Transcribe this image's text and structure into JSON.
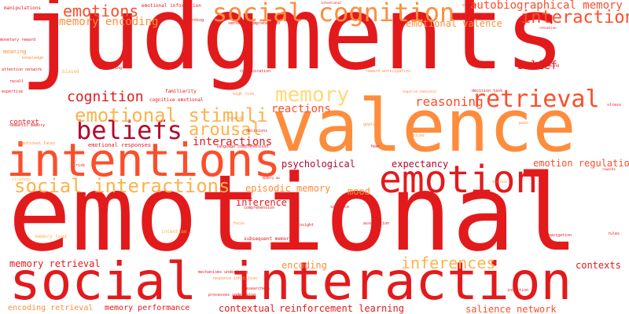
{
  "palette": {
    "dark_red": "#b3092b",
    "red": "#e31a1c",
    "orange_red": "#fc4e2a",
    "orange": "#fd8d3c",
    "light_orange": "#feb24c",
    "pale_orange": "#fed976"
  },
  "words": [
    {
      "text": "judgments",
      "color": "#e31a1c"
    },
    {
      "text": "emotional",
      "color": "#e31a1c"
    },
    {
      "text": "valence",
      "color": "#fd8d3c"
    },
    {
      "text": "social interaction",
      "color": "#e31a1c"
    },
    {
      "text": "intentions",
      "color": "#fc4e2a"
    },
    {
      "text": "emotion",
      "color": "#e31a1c"
    },
    {
      "text": "beliefs",
      "color": "#b3092b"
    },
    {
      "text": "social cognition",
      "color": "#fd8d3c"
    },
    {
      "text": "retrieval",
      "color": "#fc4e2a"
    },
    {
      "text": "social interactions",
      "color": "#feb24c"
    },
    {
      "text": "emotional stimuli",
      "color": "#feb24c"
    },
    {
      "text": "interaction",
      "color": "#fc4e2a"
    },
    {
      "text": "emotions",
      "color": "#fc4e2a"
    },
    {
      "text": "memory",
      "color": "#fed976"
    },
    {
      "text": "arousal",
      "color": "#feb24c"
    },
    {
      "text": "cognition",
      "color": "#e31a1c"
    },
    {
      "text": "inferences",
      "color": "#feb24c"
    },
    {
      "text": "reasoning",
      "color": "#fc4e2a"
    },
    {
      "text": "autobiographical memory",
      "color": "#fc4e2a"
    },
    {
      "text": "memory encoding",
      "color": "#fd8d3c"
    },
    {
      "text": "emotional valence",
      "color": "#fd8d3c"
    },
    {
      "text": "reactions",
      "color": "#fc4e2a"
    },
    {
      "text": "interactions",
      "color": "#e31a1c"
    },
    {
      "text": "belief",
      "color": "#e31a1c"
    },
    {
      "text": "episodic memory",
      "color": "#fd8d3c"
    },
    {
      "text": "psychological",
      "color": "#b3092b"
    },
    {
      "text": "expectancy",
      "color": "#b3092b"
    },
    {
      "text": "emotion regulation",
      "color": "#fc4e2a"
    },
    {
      "text": "mood",
      "color": "#fd8d3c"
    },
    {
      "text": "inference",
      "color": "#e31a1c"
    },
    {
      "text": "memory retrieval",
      "color": "#e31a1c"
    },
    {
      "text": "encoding",
      "color": "#fd8d3c"
    },
    {
      "text": "contexts",
      "color": "#e31a1c"
    },
    {
      "text": "contextual",
      "color": "#e31a1c"
    },
    {
      "text": "reinforcement learning",
      "color": "#e31a1c"
    },
    {
      "text": "salience network",
      "color": "#fc4e2a"
    },
    {
      "text": "encoding retrieval",
      "color": "#fd8d3c"
    },
    {
      "text": "memory performance",
      "color": "#e31a1c"
    },
    {
      "text": "context",
      "color": "#e31a1c"
    },
    {
      "text": "emotional responses",
      "color": "#e31a1c"
    },
    {
      "text": "familiarity",
      "color": "#e31a1c"
    },
    {
      "text": "cognitive emotional",
      "color": "#e31a1c"
    },
    {
      "text": "emotional information",
      "color": "#e31a1c"
    },
    {
      "text": "manipulations",
      "color": "#e31a1c"
    },
    {
      "text": "monetary reward",
      "color": "#e31a1c"
    },
    {
      "text": "knowledge",
      "color": "#fd8d3c"
    },
    {
      "text": "meaning",
      "color": "#fd8d3c"
    },
    {
      "text": "attention network",
      "color": "#e31a1c"
    },
    {
      "text": "recall",
      "color": "#e31a1c"
    },
    {
      "text": "expertise",
      "color": "#e31a1c"
    },
    {
      "text": "semantic memory",
      "color": "#e31a1c"
    },
    {
      "text": "emotional faces",
      "color": "#fd8d3c"
    },
    {
      "text": "strategy",
      "color": "#feb24c"
    },
    {
      "text": "risk",
      "color": "#e31a1c"
    },
    {
      "text": "intention",
      "color": "#feb24c"
    },
    {
      "text": "memory load",
      "color": "#feb24c"
    },
    {
      "text": "subsequent memory",
      "color": "#e31a1c"
    },
    {
      "text": "mechanisms underlying",
      "color": "#e31a1c"
    },
    {
      "text": "processes underlying",
      "color": "#e31a1c"
    },
    {
      "text": "response inhibition",
      "color": "#fd8d3c"
    },
    {
      "text": "sentence comprehension",
      "color": "#e31a1c"
    },
    {
      "text": "rewarding",
      "color": "#e31a1c"
    },
    {
      "text": "intentional",
      "color": "#e31a1c"
    },
    {
      "text": "choice",
      "color": "#e31a1c"
    },
    {
      "text": "retention",
      "color": "#e31a1c"
    },
    {
      "text": "monitoring",
      "color": "#e31a1c"
    },
    {
      "text": "communication",
      "color": "#e31a1c"
    },
    {
      "text": "reward anticipation",
      "color": "#fd8d3c"
    },
    {
      "text": "high risk",
      "color": "#fd8d3c"
    },
    {
      "text": "decision task",
      "color": "#e31a1c"
    },
    {
      "text": "negative emotional",
      "color": "#fd8d3c"
    },
    {
      "text": "risk taking",
      "color": "#e31a1c"
    },
    {
      "text": "stress",
      "color": "#e31a1c"
    },
    {
      "text": "search",
      "color": "#fd8d3c"
    },
    {
      "text": "decisions",
      "color": "#e31a1c"
    },
    {
      "text": "goals",
      "color": "#fd8d3c"
    },
    {
      "text": "pain",
      "color": "#fd8d3c"
    },
    {
      "text": "choices",
      "color": "#fd8d3c"
    },
    {
      "text": "language comprehension",
      "color": "#e31a1c"
    },
    {
      "text": "fear",
      "color": "#e31a1c"
    },
    {
      "text": "rewards",
      "color": "#e31a1c"
    },
    {
      "text": "distress",
      "color": "#fd8d3c"
    },
    {
      "text": "salience",
      "color": "#e31a1c"
    },
    {
      "text": "comprehension",
      "color": "#e31a1c"
    },
    {
      "text": "awareness",
      "color": "#e31a1c"
    },
    {
      "text": "insight",
      "color": "#e31a1c"
    },
    {
      "text": "association",
      "color": "#e31a1c"
    },
    {
      "text": "focus",
      "color": "#fd8d3c"
    },
    {
      "text": "navigation",
      "color": "#e31a1c"
    },
    {
      "text": "rules",
      "color": "#e31a1c"
    },
    {
      "text": "researchers",
      "color": "#e31a1c"
    },
    {
      "text": "induction",
      "color": "#e31a1c"
    },
    {
      "text": "biased",
      "color": "#feb24c"
    },
    {
      "text": "memory ww",
      "color": "#e31a1c"
    }
  ]
}
